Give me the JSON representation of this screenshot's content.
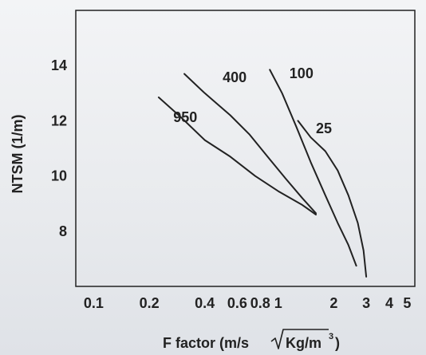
{
  "chart_data": {
    "type": "line",
    "title": "",
    "xlabel": "F factor (m/s√Kg/m³)",
    "xlabel_parts": {
      "pre": "F factor (m/s",
      "radicand": "Kg/m",
      "sup": "3",
      "post": ")"
    },
    "ylabel": "NTSM (1/m)",
    "x_scale": "log",
    "xlim": [
      0.08,
      5.5
    ],
    "ylim": [
      6,
      16
    ],
    "x_ticks": [
      0.1,
      0.2,
      0.4,
      0.6,
      0.8,
      1,
      2,
      3,
      4,
      5
    ],
    "x_tick_labels": [
      "0.1",
      "0.2",
      "0.4",
      "0.6",
      "0.8",
      "1",
      "2",
      "3",
      "4",
      "5"
    ],
    "y_ticks": [
      8,
      10,
      12,
      14
    ],
    "y_tick_labels": [
      "8",
      "10",
      "12",
      "14"
    ],
    "grid": false,
    "legend": "none",
    "series": [
      {
        "name": "950",
        "x": [
          0.225,
          0.3,
          0.4,
          0.55,
          0.75,
          1.0,
          1.35,
          1.6
        ],
        "y": [
          12.85,
          12.1,
          11.3,
          10.7,
          10.0,
          9.45,
          8.95,
          8.6
        ]
      },
      {
        "name": "400",
        "x": [
          0.31,
          0.4,
          0.55,
          0.7,
          0.9,
          1.1,
          1.35,
          1.6
        ],
        "y": [
          13.7,
          13.0,
          12.2,
          11.5,
          10.6,
          9.9,
          9.2,
          8.65
        ]
      },
      {
        "name": "100",
        "x": [
          0.9,
          1.05,
          1.25,
          1.5,
          1.8,
          2.1,
          2.4,
          2.65
        ],
        "y": [
          13.85,
          13.0,
          11.8,
          10.5,
          9.3,
          8.3,
          7.5,
          6.75
        ]
      },
      {
        "name": "25",
        "x": [
          1.28,
          1.5,
          1.8,
          2.1,
          2.4,
          2.7,
          2.9,
          3.0
        ],
        "y": [
          12.0,
          11.4,
          10.9,
          10.2,
          9.3,
          8.3,
          7.3,
          6.35
        ]
      }
    ],
    "series_label_anchor": [
      {
        "x": 0.27,
        "y": 11.95,
        "text": "950"
      },
      {
        "x": 0.5,
        "y": 13.4,
        "text": "400"
      },
      {
        "x": 1.15,
        "y": 13.55,
        "text": "100"
      },
      {
        "x": 1.6,
        "y": 11.55,
        "text": "25"
      }
    ]
  }
}
